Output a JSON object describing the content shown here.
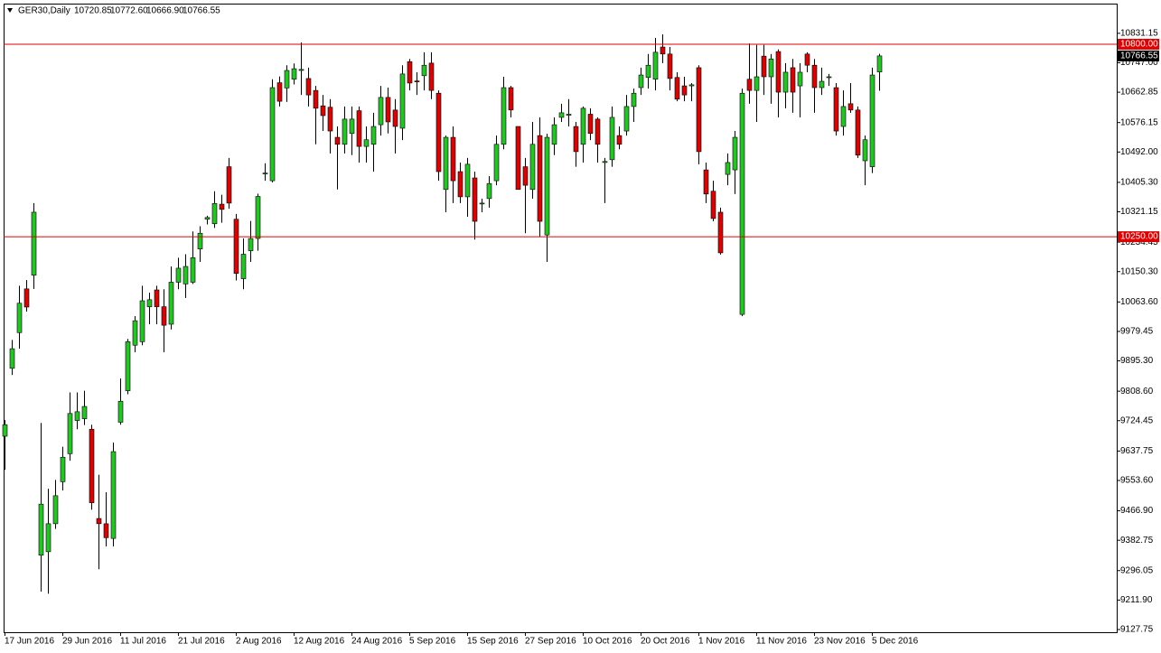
{
  "chart_data": {
    "type": "candlestick",
    "title": "GER30,Daily",
    "quote_labels": {
      "open": "10720.85",
      "high": "10772.60",
      "low": "10666.90",
      "close": "10766.55"
    },
    "categories": [
      "17 Jun 2016",
      null,
      null,
      null,
      null,
      null,
      null,
      null,
      "29 Jun 2016",
      null,
      null,
      null,
      null,
      null,
      null,
      null,
      "11 Jul 2016",
      null,
      null,
      null,
      null,
      null,
      null,
      null,
      "21 Jul 2016",
      null,
      null,
      null,
      null,
      null,
      null,
      null,
      "2 Aug 2016",
      null,
      null,
      null,
      null,
      null,
      null,
      null,
      "12 Aug 2016",
      null,
      null,
      null,
      null,
      null,
      null,
      null,
      "24 Aug 2016",
      null,
      null,
      null,
      null,
      null,
      null,
      null,
      "5 Sep 2016",
      null,
      null,
      null,
      null,
      null,
      null,
      null,
      "15 Sep 2016",
      null,
      null,
      null,
      null,
      null,
      null,
      null,
      "27 Sep 2016",
      null,
      null,
      null,
      null,
      null,
      null,
      null,
      "10 Oct 2016",
      null,
      null,
      null,
      null,
      null,
      null,
      null,
      "20 Oct 2016",
      null,
      null,
      null,
      null,
      null,
      null,
      null,
      "1 Nov 2016",
      null,
      null,
      null,
      null,
      null,
      null,
      null,
      "11 Nov 2016",
      null,
      null,
      null,
      null,
      null,
      null,
      null,
      "23 Nov 2016",
      null,
      null,
      null,
      null,
      null,
      null,
      null,
      "5 Dec 2016",
      null
    ],
    "series": {
      "up_color": "#1ec81e",
      "down_color": "#e00000",
      "open": [
        9680,
        9874,
        9976,
        10101,
        10140,
        9340,
        9350,
        9430,
        9550,
        9630,
        9725,
        9730,
        9700,
        9445,
        9430,
        9388,
        9720,
        9810,
        9940,
        9950,
        10050,
        10098,
        10050,
        10000,
        10120,
        10115,
        10120,
        10215,
        10300,
        10287,
        10343,
        10450,
        10300,
        10130,
        10210,
        10245,
        10430,
        10410,
        10690,
        10675,
        10700,
        10725,
        10702,
        10668,
        10624,
        10620,
        10534,
        10514,
        10545,
        10610,
        10508,
        10514,
        10570,
        10648,
        10612,
        10560,
        10750,
        10695,
        10710,
        10746,
        10660,
        10385,
        10534,
        10436,
        10364,
        10418,
        10346,
        10359,
        10410,
        10514,
        10676,
        10565,
        10450,
        10385,
        10539,
        10255,
        10514,
        10591,
        10597,
        10565,
        10514,
        10600,
        10586,
        10462,
        10470,
        10539,
        10552,
        10622,
        10676,
        10705,
        10700,
        10792,
        10772,
        10705,
        10681,
        10681,
        10733,
        10441,
        10380,
        10320,
        10428,
        10441,
        10028,
        10700,
        10668,
        10766,
        10707,
        10779,
        10663,
        10733,
        10681,
        10772,
        10740,
        10676,
        10705,
        10676,
        10565,
        10630,
        10612,
        10467,
        10450,
        10720.85
      ],
      "high": [
        9726,
        9955,
        10110,
        10126,
        10346,
        9718,
        9530,
        9555,
        9650,
        9805,
        9805,
        9810,
        9713,
        9570,
        9520,
        9662,
        9845,
        9958,
        10023,
        10110,
        10090,
        10110,
        10100,
        10165,
        10190,
        10200,
        10265,
        10280,
        10310,
        10380,
        10370,
        10475,
        10315,
        10245,
        10295,
        10373,
        10460,
        10700,
        10708,
        10740,
        10745,
        10805,
        10733,
        10681,
        10655,
        10643,
        10565,
        10622,
        10622,
        10622,
        10565,
        10604,
        10681,
        10676,
        10643,
        10740,
        10758,
        10720,
        10777,
        10777,
        10668,
        10539,
        10565,
        10462,
        10475,
        10436,
        10359,
        10423,
        10539,
        10707,
        10681,
        10565,
        10475,
        10578,
        10591,
        10544,
        10591,
        10630,
        10643,
        10578,
        10622,
        10617,
        10591,
        10475,
        10622,
        10565,
        10655,
        10673,
        10733,
        10772,
        10818,
        10828,
        10792,
        10720,
        10707,
        10689,
        10740,
        10462,
        10410,
        10333,
        10488,
        10552,
        10673,
        10802,
        10798,
        10798,
        10772,
        10785,
        10746,
        10758,
        10746,
        10777,
        10758,
        10733,
        10715,
        10689,
        10668,
        10689,
        10622,
        10539,
        10733,
        10772.6
      ],
      "low": [
        9584,
        9855,
        9930,
        10036,
        10101,
        9236,
        9230,
        9415,
        9525,
        9610,
        9700,
        9712,
        9470,
        9300,
        9365,
        9365,
        9713,
        9800,
        9920,
        9940,
        10000,
        10000,
        9920,
        9985,
        10100,
        10075,
        10115,
        10178,
        10285,
        10275,
        10290,
        10330,
        10125,
        10100,
        10178,
        10210,
        10410,
        10405,
        10622,
        10635,
        10685,
        10655,
        10622,
        10514,
        10552,
        10488,
        10385,
        10488,
        10483,
        10462,
        10462,
        10436,
        10539,
        10545,
        10488,
        10526,
        10668,
        10655,
        10668,
        10643,
        10410,
        10320,
        10346,
        10346,
        10307,
        10242,
        10320,
        10333,
        10397,
        10500,
        10591,
        10385,
        10260,
        10359,
        10250,
        10178,
        10483,
        10578,
        10565,
        10450,
        10462,
        10526,
        10462,
        10346,
        10450,
        10500,
        10539,
        10578,
        10655,
        10673,
        10668,
        10746,
        10668,
        10637,
        10637,
        10637,
        10457,
        10346,
        10294,
        10199,
        10397,
        10372,
        10023,
        10630,
        10578,
        10655,
        10630,
        10591,
        10617,
        10604,
        10591,
        10720,
        10604,
        10655,
        10681,
        10539,
        10539,
        10604,
        10475,
        10397,
        10432,
        10666.9
      ],
      "close": [
        9713,
        9930,
        10060,
        10049,
        10320,
        9486,
        9430,
        9510,
        9620,
        9745,
        9750,
        9765,
        9490,
        9430,
        9390,
        9636,
        9780,
        9950,
        10010,
        10067,
        10070,
        10050,
        9997,
        10120,
        10160,
        10165,
        10190,
        10260,
        10305,
        10345,
        10328,
        10346,
        10145,
        10200,
        10245,
        10365,
        10432,
        10676,
        10637,
        10725,
        10730,
        10728,
        10655,
        10617,
        10596,
        10552,
        10514,
        10586,
        10586,
        10508,
        10527,
        10565,
        10648,
        10578,
        10565,
        10715,
        10689,
        10694,
        10740,
        10668,
        10436,
        10534,
        10410,
        10364,
        10457,
        10294,
        10346,
        10402,
        10514,
        10676,
        10612,
        10385,
        10397,
        10514,
        10294,
        10534,
        10570,
        10604,
        10600,
        10493,
        10617,
        10545,
        10514,
        10465,
        10591,
        10514,
        10622,
        10660,
        10712,
        10740,
        10777,
        10772,
        10702,
        10643,
        10655,
        10684,
        10493,
        10372,
        10302,
        10204,
        10462,
        10534,
        10660,
        10668,
        10707,
        10707,
        10758,
        10663,
        10720,
        10663,
        10720,
        10740,
        10676,
        10694,
        10707,
        10552,
        10622,
        10612,
        10483,
        10527,
        10712,
        10766.55
      ]
    },
    "hlines": [
      {
        "value": 10800,
        "label": "10800.00",
        "color": "#e00000"
      },
      {
        "value": 10250,
        "label": "10250.00",
        "color": "#e00000"
      }
    ],
    "ylim": [
      9120,
      10916
    ],
    "yticks": [
      10831.15,
      {
        "value": 10747,
        "label": "10747.00"
      },
      10662.85,
      10576.15,
      {
        "value": 10492,
        "label": "10492.00"
      },
      {
        "value": 10405.3,
        "label": "10405.30"
      },
      10321.15,
      10234.45,
      {
        "value": 10150.3,
        "label": "10150.30"
      },
      {
        "value": 10063.6,
        "label": "10063.60"
      },
      9979.45,
      {
        "value": 9895.3,
        "label": "9895.30"
      },
      {
        "value": 9808.6,
        "label": "9808.60"
      },
      9724.45,
      9637.75,
      {
        "value": 9553.6,
        "label": "9553.60"
      },
      {
        "value": 9466.9,
        "label": "9466.90"
      },
      9382.75,
      9296.05,
      {
        "value": 9211.9,
        "label": "9211.90"
      },
      9127.75
    ]
  }
}
